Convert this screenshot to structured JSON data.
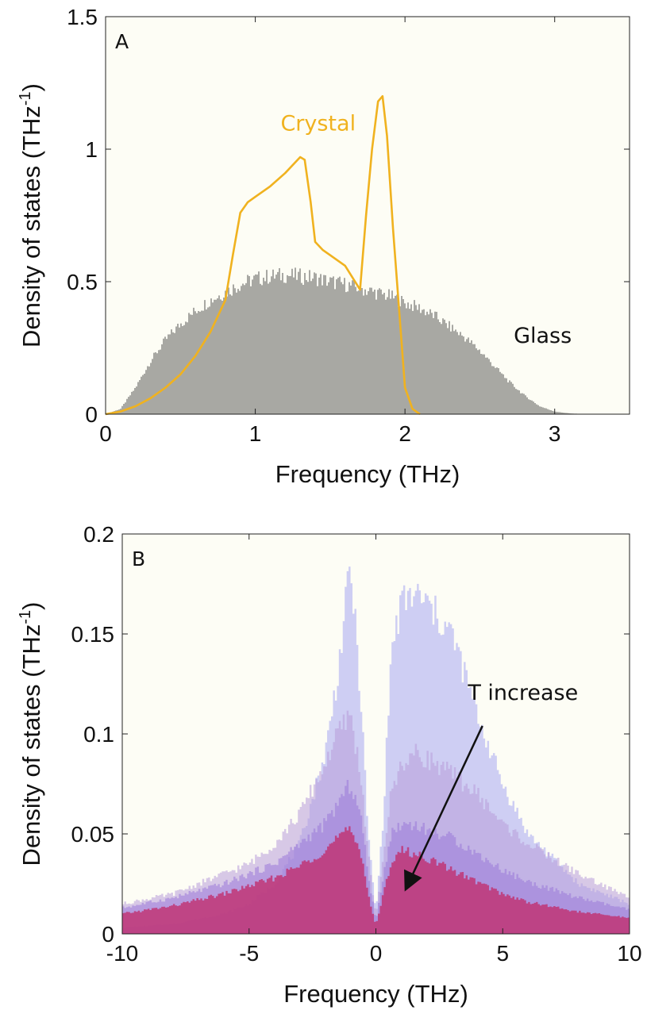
{
  "chart_data": [
    {
      "type": "area",
      "panel_label": "A",
      "xlabel": "Frequency (THz)",
      "ylabel": "Density of states (THz",
      "ylabel_sup": "-1",
      "ylabel_close": ")",
      "xlim": [
        0,
        3.5
      ],
      "ylim": [
        0,
        1.5
      ],
      "xticks": [
        0,
        1,
        2,
        3
      ],
      "xtick_labels": [
        "0",
        "1",
        "2",
        "3"
      ],
      "yticks": [
        0,
        0.5,
        1,
        1.5
      ],
      "ytick_labels": [
        "0",
        "0.5",
        "1",
        "1.5"
      ],
      "grid": false,
      "background": "#fdfdf5",
      "series": [
        {
          "name": "Glass",
          "kind": "histogram",
          "color": "#a8a8a3",
          "x": [
            0,
            0.1,
            0.2,
            0.3,
            0.4,
            0.5,
            0.6,
            0.7,
            0.8,
            0.9,
            1.0,
            1.1,
            1.2,
            1.3,
            1.4,
            1.5,
            1.6,
            1.7,
            1.8,
            1.9,
            2.0,
            2.1,
            2.2,
            2.3,
            2.4,
            2.5,
            2.6,
            2.7,
            2.8,
            2.9,
            3.0,
            3.1,
            3.2
          ],
          "y": [
            0.0,
            0.02,
            0.1,
            0.2,
            0.28,
            0.34,
            0.39,
            0.43,
            0.46,
            0.49,
            0.51,
            0.52,
            0.525,
            0.52,
            0.515,
            0.5,
            0.49,
            0.475,
            0.46,
            0.445,
            0.42,
            0.4,
            0.37,
            0.33,
            0.29,
            0.24,
            0.18,
            0.12,
            0.07,
            0.03,
            0.01,
            0.003,
            0.0
          ]
        },
        {
          "name": "Crystal",
          "kind": "line",
          "color": "#f0b21f",
          "x": [
            0,
            0.1,
            0.2,
            0.3,
            0.4,
            0.5,
            0.6,
            0.7,
            0.8,
            0.85,
            0.9,
            0.95,
            1.0,
            1.1,
            1.2,
            1.3,
            1.33,
            1.37,
            1.4,
            1.45,
            1.5,
            1.6,
            1.7,
            1.74,
            1.78,
            1.82,
            1.85,
            1.88,
            1.92,
            1.96,
            2.0,
            2.05,
            2.1
          ],
          "y": [
            0.0,
            0.01,
            0.03,
            0.06,
            0.1,
            0.15,
            0.22,
            0.31,
            0.43,
            0.6,
            0.76,
            0.8,
            0.82,
            0.86,
            0.91,
            0.97,
            0.96,
            0.8,
            0.65,
            0.62,
            0.6,
            0.56,
            0.47,
            0.75,
            1.0,
            1.18,
            1.2,
            1.05,
            0.7,
            0.4,
            0.1,
            0.02,
            0.0
          ]
        }
      ],
      "annotations": [
        {
          "text": "Crystal",
          "x": 1.42,
          "y": 1.07,
          "color": "#f0b21f"
        },
        {
          "text": "Glass",
          "x": 2.92,
          "y": 0.27,
          "color": "#111111"
        }
      ]
    },
    {
      "type": "area",
      "panel_label": "B",
      "xlabel": "Frequency (THz)",
      "ylabel": "Density of states (THz",
      "ylabel_sup": "-1",
      "ylabel_close": ")",
      "xlim": [
        -10,
        10
      ],
      "ylim": [
        0,
        0.2
      ],
      "xticks": [
        -10,
        -5,
        0,
        5,
        10
      ],
      "xtick_labels": [
        "-10",
        "-5",
        "0",
        "5",
        "10"
      ],
      "yticks": [
        0,
        0.05,
        0.1,
        0.15,
        0.2
      ],
      "ytick_labels": [
        "0",
        "0.05",
        "0.1",
        "0.15",
        "0.2"
      ],
      "grid": false,
      "background": "#fdfdf5",
      "series": [
        {
          "kind": "histogram",
          "color": "#a8a8f0",
          "opacity": 0.55,
          "x": [
            -10,
            -8,
            -6,
            -5,
            -4,
            -3,
            -2,
            -1.5,
            -1,
            -0.6,
            -0.3,
            0,
            0.3,
            0.6,
            1,
            1.5,
            2,
            3,
            4,
            5,
            6,
            8,
            10
          ],
          "y": [
            0.003,
            0.005,
            0.01,
            0.015,
            0.025,
            0.045,
            0.09,
            0.13,
            0.185,
            0.12,
            0.05,
            0.01,
            0.06,
            0.14,
            0.165,
            0.17,
            0.165,
            0.15,
            0.11,
            0.075,
            0.05,
            0.025,
            0.015
          ]
        },
        {
          "kind": "histogram",
          "color": "#b89cd8",
          "opacity": 0.55,
          "x": [
            -10,
            -8,
            -6,
            -5,
            -4,
            -3,
            -2,
            -1.5,
            -1,
            -0.6,
            -0.3,
            0,
            0.3,
            0.6,
            1,
            1.5,
            2,
            3,
            4,
            5,
            6,
            8,
            10
          ],
          "y": [
            0.015,
            0.02,
            0.03,
            0.035,
            0.045,
            0.06,
            0.085,
            0.1,
            0.11,
            0.08,
            0.04,
            0.008,
            0.04,
            0.07,
            0.085,
            0.09,
            0.088,
            0.08,
            0.07,
            0.055,
            0.045,
            0.03,
            0.018
          ]
        },
        {
          "kind": "histogram",
          "color": "#9a78d8",
          "opacity": 0.55,
          "x": [
            -10,
            -8,
            -6,
            -5,
            -4,
            -3,
            -2,
            -1.5,
            -1,
            -0.6,
            -0.3,
            0,
            0.3,
            0.6,
            1,
            1.5,
            2,
            3,
            4,
            5,
            6,
            8,
            10
          ],
          "y": [
            0.013,
            0.018,
            0.025,
            0.03,
            0.035,
            0.045,
            0.055,
            0.065,
            0.075,
            0.06,
            0.03,
            0.006,
            0.03,
            0.05,
            0.055,
            0.055,
            0.052,
            0.048,
            0.04,
            0.032,
            0.026,
            0.018,
            0.012
          ]
        },
        {
          "kind": "histogram",
          "color": "#c2306e",
          "opacity": 0.8,
          "x": [
            -10,
            -8,
            -6,
            -5,
            -4,
            -3,
            -2,
            -1.5,
            -1,
            -0.6,
            -0.3,
            0,
            0.3,
            0.6,
            1,
            1.5,
            2,
            3,
            4,
            5,
            6,
            8,
            10
          ],
          "y": [
            0.01,
            0.014,
            0.02,
            0.024,
            0.028,
            0.034,
            0.042,
            0.048,
            0.052,
            0.042,
            0.02,
            0.004,
            0.02,
            0.036,
            0.042,
            0.04,
            0.038,
            0.032,
            0.026,
            0.02,
            0.016,
            0.011,
            0.008
          ]
        }
      ],
      "annotations": [
        {
          "text": "T increase",
          "x": 5.8,
          "y": 0.117,
          "color": "#111111"
        }
      ],
      "arrow": {
        "x1": 4.2,
        "y1": 0.104,
        "x2": 1.2,
        "y2": 0.023
      }
    }
  ]
}
